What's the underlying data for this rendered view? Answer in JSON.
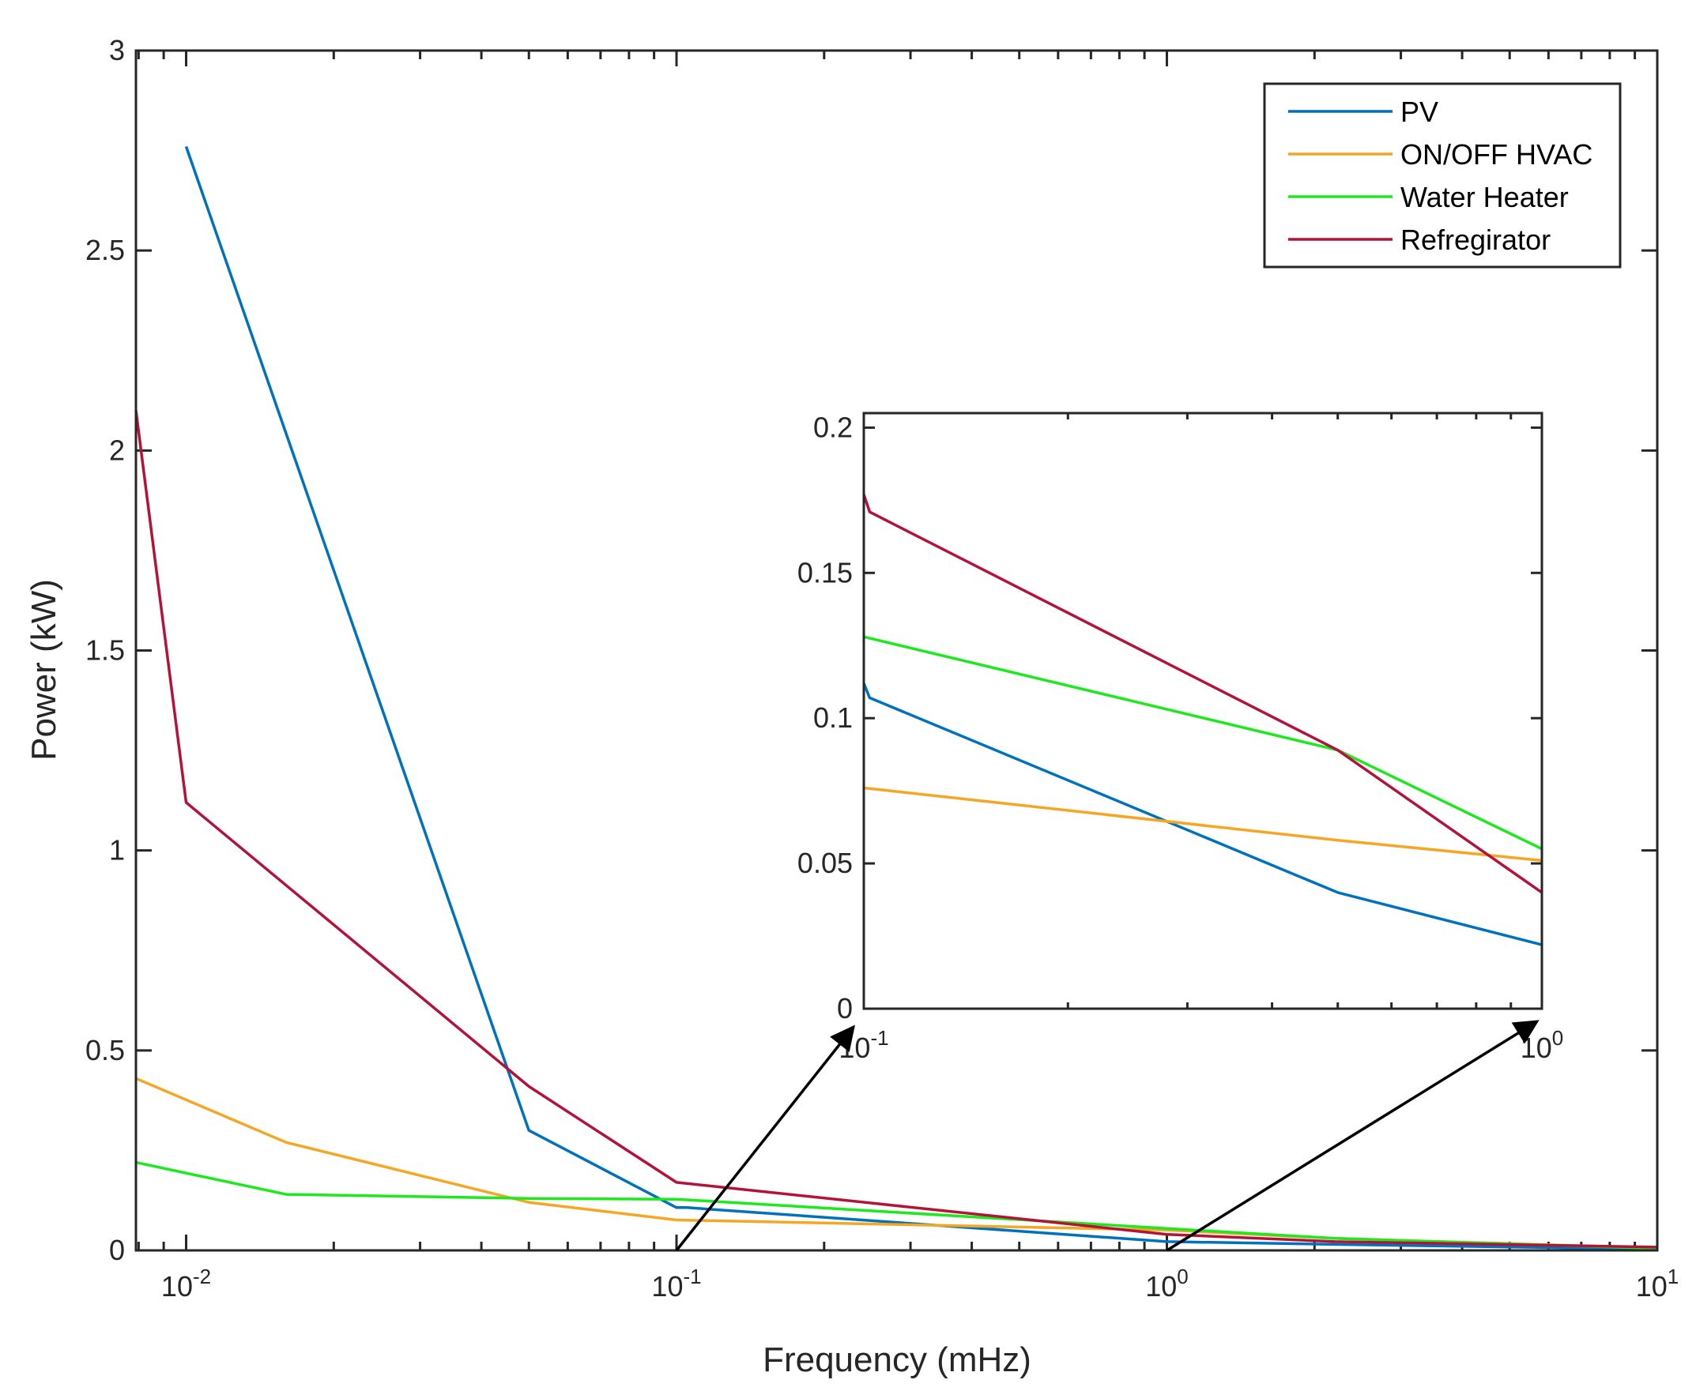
{
  "chart_data": [
    {
      "id": "main",
      "type": "line",
      "title": "",
      "xlabel": "Frequency (mHz)",
      "ylabel": "Power (kW)",
      "xscale": "log",
      "xlim": [
        0.0079,
        10
      ],
      "ylim": [
        0,
        3
      ],
      "xticks": [
        {
          "value": 0.01,
          "base": "10",
          "exp": "-2"
        },
        {
          "value": 0.1,
          "base": "10",
          "exp": "-1"
        },
        {
          "value": 1,
          "base": "10",
          "exp": "0"
        },
        {
          "value": 10,
          "base": "10",
          "exp": "1"
        }
      ],
      "yticks": [
        {
          "value": 0,
          "label": "0"
        },
        {
          "value": 0.5,
          "label": "0.5"
        },
        {
          "value": 1,
          "label": "1"
        },
        {
          "value": 1.5,
          "label": "1.5"
        },
        {
          "value": 2,
          "label": "2"
        },
        {
          "value": 2.5,
          "label": "2.5"
        },
        {
          "value": 3,
          "label": "3"
        }
      ],
      "legend_position": "top-right",
      "series": [
        {
          "name": "PV",
          "color": "#0072BD",
          "x": [
            0.01,
            0.05,
            0.1,
            0.105,
            1,
            2.2,
            10
          ],
          "y": [
            2.76,
            0.3,
            0.107,
            0.107,
            0.022,
            0.015,
            0.003
          ]
        },
        {
          "name": "ON/OFF HVAC",
          "color": "#F5A623",
          "x": [
            0.0079,
            0.016,
            0.05,
            0.1,
            1,
            2.2,
            10
          ],
          "y": [
            0.43,
            0.27,
            0.12,
            0.076,
            0.051,
            0.03,
            0.006
          ]
        },
        {
          "name": "Water Heater",
          "color": "#1EE81E",
          "x": [
            0.0079,
            0.016,
            0.05,
            0.1,
            1,
            2.2,
            10
          ],
          "y": [
            0.22,
            0.14,
            0.13,
            0.128,
            0.055,
            0.03,
            0.005
          ]
        },
        {
          "name": "Refregirator",
          "color": "#B5123A",
          "x": [
            0.0079,
            0.01,
            0.05,
            0.1,
            1,
            2.2,
            10
          ],
          "y": [
            2.1,
            1.12,
            0.41,
            0.17,
            0.04,
            0.022,
            0.008
          ]
        }
      ]
    },
    {
      "id": "inset",
      "type": "line",
      "title": "",
      "xlabel": "",
      "ylabel": "",
      "xscale": "log",
      "xlim": [
        0.1,
        1
      ],
      "ylim": [
        0,
        0.205
      ],
      "xticks": [
        {
          "value": 0.1,
          "base": "10",
          "exp": "-1"
        },
        {
          "value": 1,
          "base": "10",
          "exp": "0"
        }
      ],
      "yticks": [
        {
          "value": 0,
          "label": "0"
        },
        {
          "value": 0.05,
          "label": "0.05"
        },
        {
          "value": 0.1,
          "label": "0.1"
        },
        {
          "value": 0.15,
          "label": "0.15"
        },
        {
          "value": 0.2,
          "label": "0.2"
        }
      ],
      "series": [
        {
          "name": "PV",
          "color": "#0072BD",
          "x": [
            0.1,
            0.102,
            0.5,
            1
          ],
          "y": [
            0.112,
            0.107,
            0.04,
            0.022
          ]
        },
        {
          "name": "ON/OFF HVAC",
          "color": "#F5A623",
          "x": [
            0.1,
            0.5,
            1
          ],
          "y": [
            0.076,
            0.058,
            0.051
          ]
        },
        {
          "name": "Water Heater",
          "color": "#1EE81E",
          "x": [
            0.1,
            0.5,
            1
          ],
          "y": [
            0.128,
            0.089,
            0.055
          ]
        },
        {
          "name": "Refregirator",
          "color": "#B5123A",
          "x": [
            0.1,
            0.102,
            0.5,
            1
          ],
          "y": [
            0.177,
            0.171,
            0.089,
            0.04
          ]
        }
      ]
    }
  ]
}
